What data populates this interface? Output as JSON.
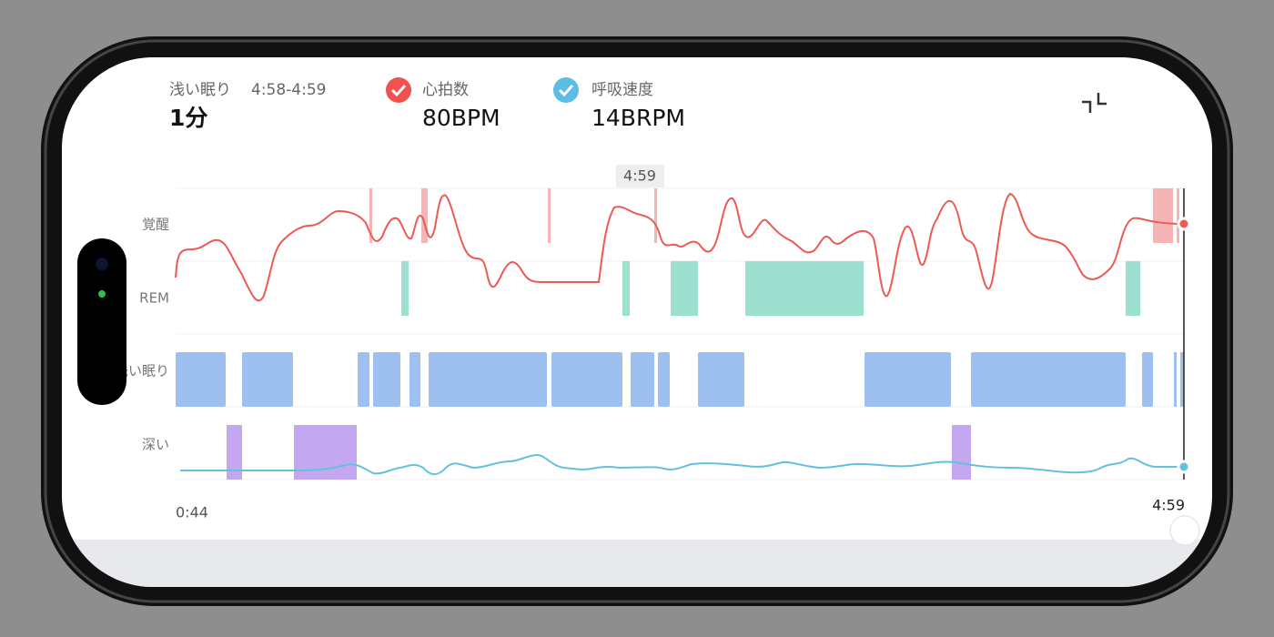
{
  "header": {
    "stage": "浅い眠り",
    "range": "4:58-4:59",
    "duration": "1分"
  },
  "metrics": [
    {
      "label": "心拍数",
      "value": "80BPM"
    },
    {
      "label": "呼吸速度",
      "value": "14BRPM"
    }
  ],
  "chart": {
    "stage_labels": [
      "覚醒",
      "REM",
      "浅い眠り",
      "深い"
    ],
    "cursor_time": "4:59",
    "start_time": "0:44",
    "end_time": "4:59"
  }
}
